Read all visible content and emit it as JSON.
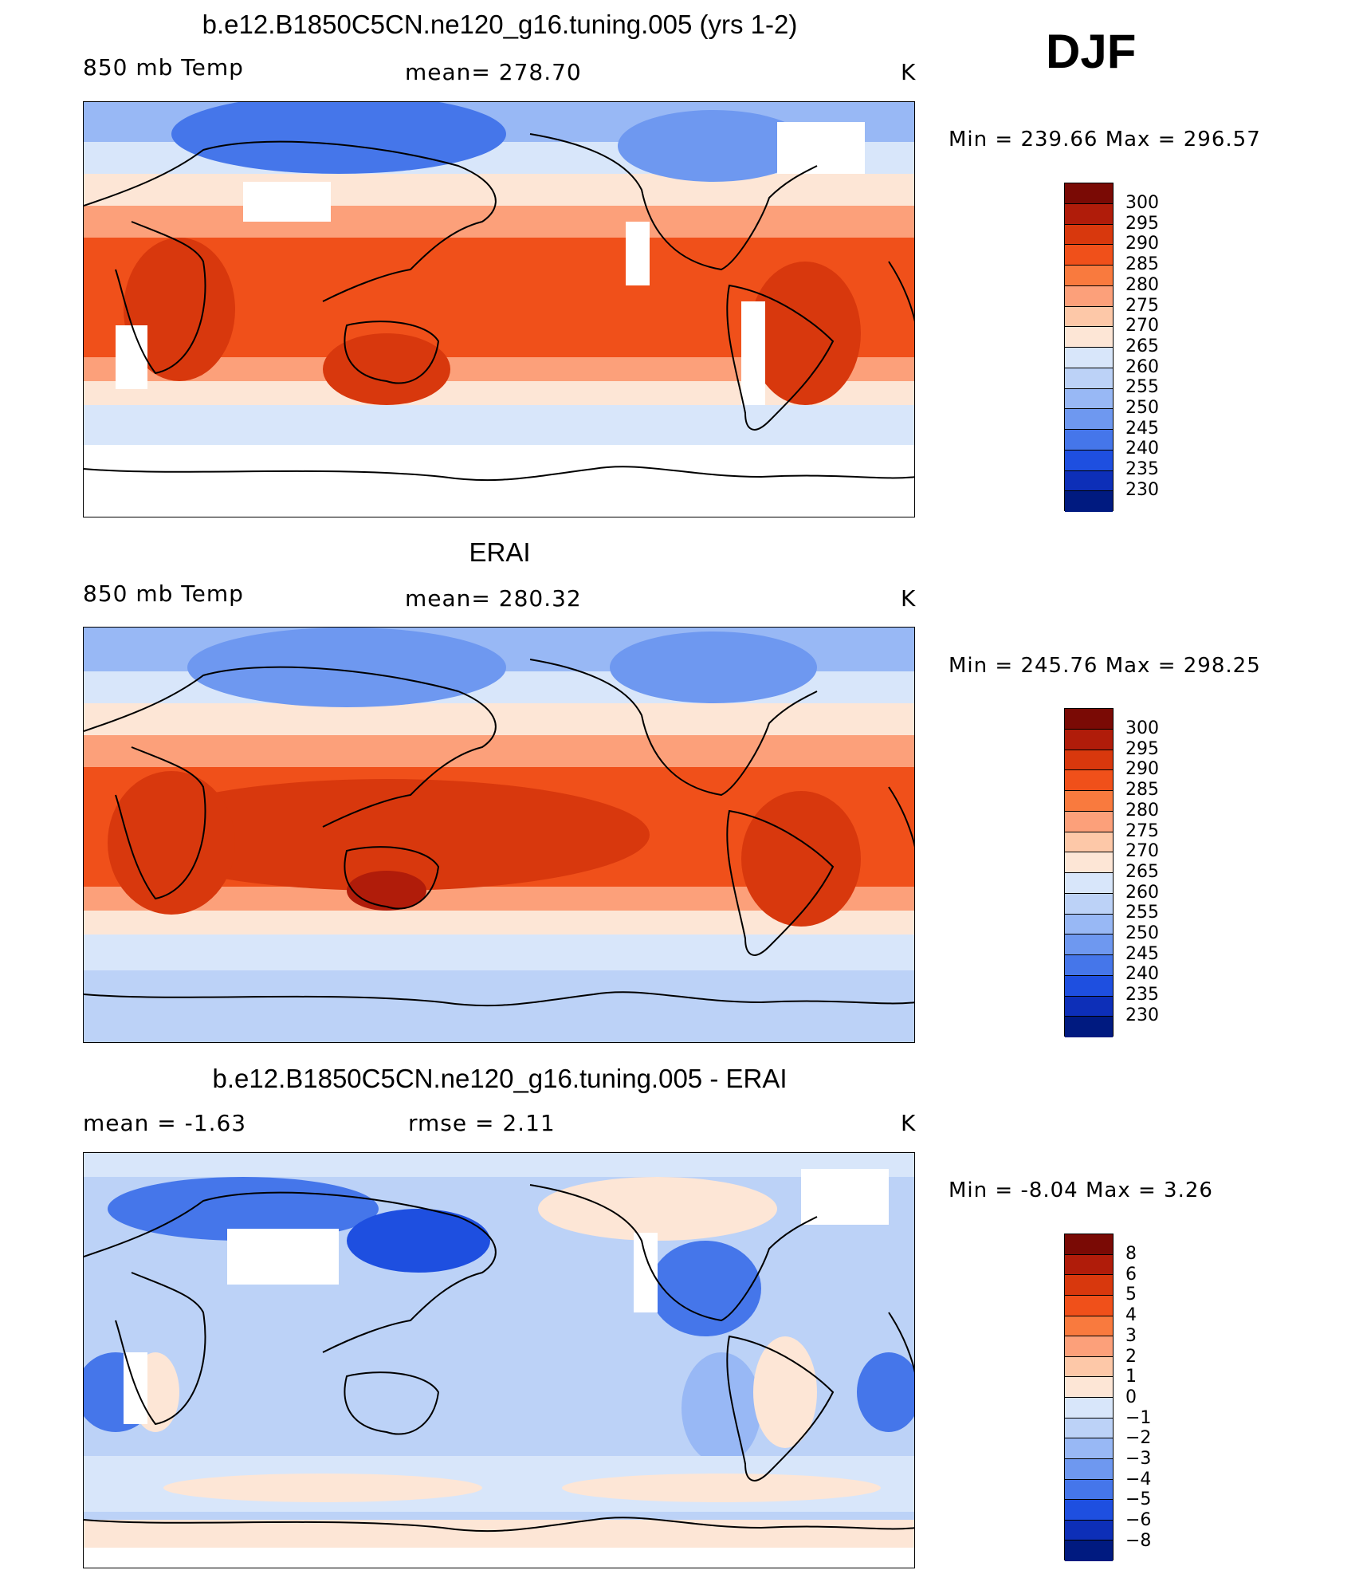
{
  "season": "DJF",
  "units": "K",
  "panels": [
    {
      "title": "b.e12.B1850C5CN.ne120_g16.tuning.005 (yrs 1-2)",
      "left_label": "850 mb Temp",
      "center_label": "mean= 278.70",
      "right_label": "K",
      "minmax": "Min = 239.66 Max = 296.57",
      "colorbar_labels": [
        "300",
        "295",
        "290",
        "285",
        "280",
        "275",
        "270",
        "265",
        "260",
        "255",
        "250",
        "245",
        "240",
        "235",
        "230"
      ]
    },
    {
      "title": "ERAI",
      "left_label": "850 mb Temp",
      "center_label": "mean= 280.32",
      "right_label": "K",
      "minmax": "Min = 245.76 Max = 298.25",
      "colorbar_labels": [
        "300",
        "295",
        "290",
        "285",
        "280",
        "275",
        "270",
        "265",
        "260",
        "255",
        "250",
        "245",
        "240",
        "235",
        "230"
      ]
    },
    {
      "title": "b.e12.B1850C5CN.ne120_g16.tuning.005 - ERAI",
      "left_label": "mean = -1.63",
      "center_label": "rmse = 2.11",
      "right_label": "K",
      "minmax": "Min = -8.04 Max = 3.26",
      "colorbar_labels": [
        "8",
        "6",
        "5",
        "4",
        "3",
        "2",
        "1",
        "0",
        "−1",
        "−2",
        "−3",
        "−4",
        "−5",
        "−6",
        "−8"
      ]
    }
  ],
  "colorbar_colors": [
    "#7a0a05",
    "#b01c0a",
    "#d8380d",
    "#f0501a",
    "#f97a3e",
    "#fca07a",
    "#fdc8a8",
    "#fde6d6",
    "#d8e6fa",
    "#bcd2f7",
    "#98b8f5",
    "#6e98f0",
    "#4576ea",
    "#1e4fe0",
    "#0d2fb8",
    "#001a80"
  ]
}
